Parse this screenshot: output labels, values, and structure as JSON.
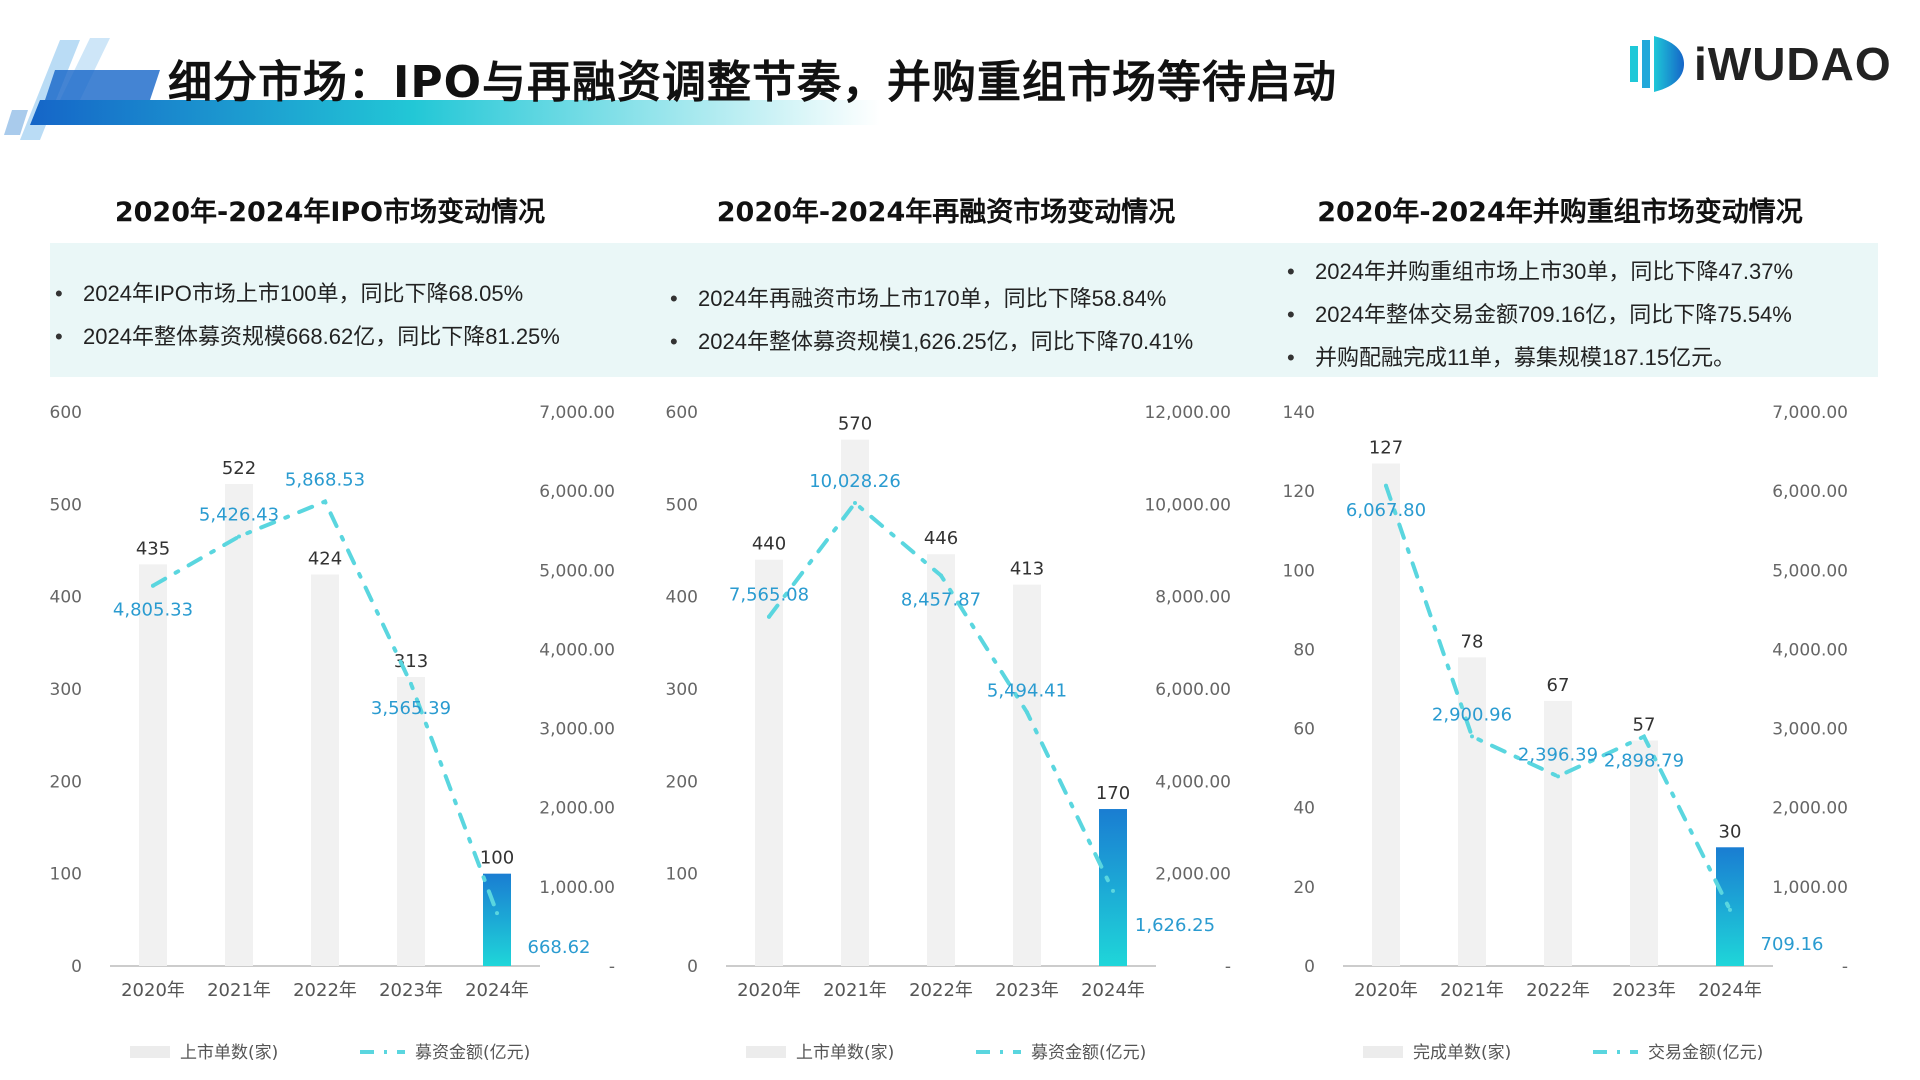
{
  "header": {
    "title": "细分市场：IPO与再融资调整节奏，并购重组市场等待启动",
    "logo_text": "iWUDAO"
  },
  "colors": {
    "bar": "#f1f1f1",
    "highlight_top": "#1a7dd2",
    "highlight_bottom": "#1fd6d9",
    "line": "#5ad6df",
    "line_label": "#2a9bd0",
    "panel": "#eaf7f7"
  },
  "sections": [
    {
      "title": "2020年-2024年IPO市场变动情况",
      "bullets": [
        "2024年IPO市场上市100单，同比下降68.05%",
        "2024年整体募资规模668.62亿，同比下降81.25%"
      ]
    },
    {
      "title": "2020年-2024年再融资市场变动情况",
      "bullets": [
        "2024年再融资市场上市170单，同比下降58.84%",
        "2024年整体募资规模1,626.25亿，同比下降70.41%"
      ]
    },
    {
      "title": "2020年-2024年并购重组市场变动情况",
      "bullets": [
        "2024年并购重组市场上市30单，同比下降47.37%",
        "2024年整体交易金额709.16亿，同比下降75.54%",
        "并购配融完成11单，募集规模187.15亿元。"
      ]
    }
  ],
  "chart_data": [
    {
      "type": "bar+line",
      "categories": [
        "2020年",
        "2021年",
        "2022年",
        "2023年",
        "2024年"
      ],
      "series": [
        {
          "name": "上市单数(家)",
          "type": "bar",
          "axis": "left",
          "values": [
            435,
            522,
            424,
            313,
            100
          ],
          "labels": [
            "435",
            "522",
            "424",
            "313",
            "100"
          ]
        },
        {
          "name": "募资金额(亿元)",
          "type": "line",
          "axis": "right",
          "values": [
            4805.33,
            5426.43,
            5868.53,
            3565.39,
            668.62
          ],
          "labels": [
            "4,805.33",
            "5,426.43",
            "5,868.53",
            "3,565.39",
            "668.62"
          ]
        }
      ],
      "ylim_left": [
        0,
        600
      ],
      "yticks_left": [
        "0",
        "100",
        "200",
        "300",
        "400",
        "500",
        "600"
      ],
      "ylim_right": [
        0,
        7000
      ],
      "yticks_right": [
        "-",
        "1,000.00",
        "2,000.00",
        "3,000.00",
        "4,000.00",
        "5,000.00",
        "6,000.00",
        "7,000.00"
      ],
      "legend": "bottom",
      "grid": false,
      "highlight_last": true
    },
    {
      "type": "bar+line",
      "categories": [
        "2020年",
        "2021年",
        "2022年",
        "2023年",
        "2024年"
      ],
      "series": [
        {
          "name": "上市单数(家)",
          "type": "bar",
          "axis": "left",
          "values": [
            440,
            570,
            446,
            413,
            170
          ],
          "labels": [
            "440",
            "570",
            "446",
            "413",
            "170"
          ]
        },
        {
          "name": "募资金额(亿元)",
          "type": "line",
          "axis": "right",
          "values": [
            7565.08,
            10028.26,
            8457.87,
            5494.41,
            1626.25
          ],
          "labels": [
            "7,565.08",
            "10,028.26",
            "8,457.87",
            "5,494.41",
            "1,626.25"
          ]
        }
      ],
      "ylim_left": [
        0,
        600
      ],
      "yticks_left": [
        "0",
        "100",
        "200",
        "300",
        "400",
        "500",
        "600"
      ],
      "ylim_right": [
        0,
        12000
      ],
      "yticks_right": [
        "-",
        "2,000.00",
        "4,000.00",
        "6,000.00",
        "8,000.00",
        "10,000.00",
        "12,000.00"
      ],
      "legend": "bottom",
      "grid": false,
      "highlight_last": true
    },
    {
      "type": "bar+line",
      "categories": [
        "2020年",
        "2021年",
        "2022年",
        "2023年",
        "2024年"
      ],
      "series": [
        {
          "name": "完成单数(家)",
          "type": "bar",
          "axis": "left",
          "values": [
            127,
            78,
            67,
            57,
            30
          ],
          "labels": [
            "127",
            "78",
            "67",
            "57",
            "30"
          ]
        },
        {
          "name": "交易金额(亿元)",
          "type": "line",
          "axis": "right",
          "values": [
            6067.8,
            2900.96,
            2396.39,
            2898.79,
            709.16
          ],
          "labels": [
            "6,067.80",
            "2,900.96",
            "2,396.39",
            "2,898.79",
            "709.16"
          ]
        }
      ],
      "ylim_left": [
        0,
        140
      ],
      "yticks_left": [
        "0",
        "20",
        "40",
        "60",
        "80",
        "100",
        "120",
        "140"
      ],
      "ylim_right": [
        0,
        7000
      ],
      "yticks_right": [
        "-",
        "1,000.00",
        "2,000.00",
        "3,000.00",
        "4,000.00",
        "5,000.00",
        "6,000.00",
        "7,000.00"
      ],
      "legend": "bottom",
      "grid": false,
      "highlight_last": true
    }
  ]
}
